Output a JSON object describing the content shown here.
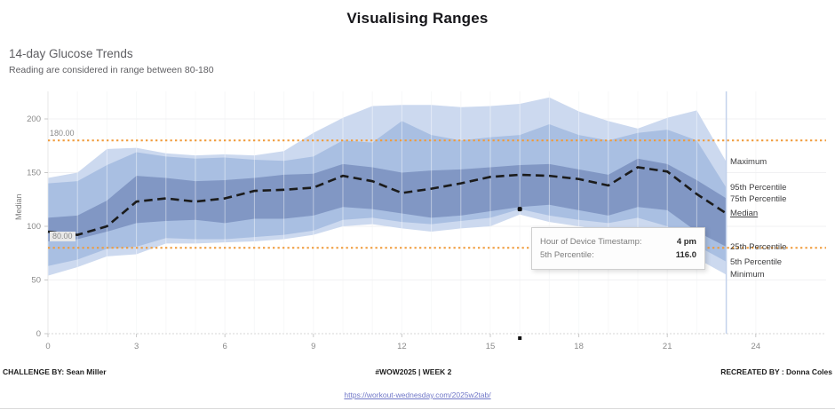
{
  "page": {
    "title": "Visualising Ranges"
  },
  "chart_header": {
    "title": "14-day Glucose Trends",
    "subtitle": "Reading are considered in range between 80-180"
  },
  "chart_data": {
    "type": "area",
    "title": "14-day Glucose Trends",
    "ylabel": "Median",
    "x": [
      0,
      1,
      2,
      3,
      4,
      5,
      6,
      7,
      8,
      9,
      10,
      11,
      12,
      13,
      14,
      15,
      16,
      17,
      18,
      19,
      20,
      21,
      22,
      23
    ],
    "x_ticks": [
      0,
      3,
      6,
      9,
      12,
      15,
      18,
      21,
      24
    ],
    "y_ticks": [
      0,
      50,
      100,
      150,
      200
    ],
    "ylim": [
      0,
      225
    ],
    "xlim": [
      0,
      24
    ],
    "grid": "vertical-hour-lines",
    "series": [
      {
        "name": "Maximum",
        "band": "min-max",
        "values": [
          145,
          150,
          172,
          173,
          168,
          166,
          167,
          166,
          170,
          187,
          201,
          212,
          213,
          213,
          211,
          212,
          214,
          220,
          207,
          198,
          191,
          201,
          208,
          160
        ]
      },
      {
        "name": "95th Percentile",
        "band": "5-95",
        "values": [
          140,
          142,
          157,
          169,
          165,
          163,
          164,
          162,
          161,
          165,
          180,
          178,
          198,
          185,
          180,
          183,
          185,
          195,
          185,
          180,
          187,
          190,
          180,
          136
        ]
      },
      {
        "name": "75th Percentile",
        "band": "25-75",
        "values": [
          108,
          110,
          124,
          147,
          145,
          142,
          143,
          145,
          148,
          149,
          158,
          155,
          150,
          152,
          153,
          155,
          157,
          158,
          153,
          148,
          163,
          158,
          143,
          126
        ]
      },
      {
        "name": "Median",
        "band": "median-line",
        "underlined": true,
        "values": [
          95,
          92,
          100,
          123,
          126,
          123,
          126,
          133,
          134,
          136,
          147,
          142,
          131,
          135,
          140,
          146,
          148,
          147,
          144,
          138,
          155,
          151,
          130,
          112
        ]
      },
      {
        "name": "25th Percentile",
        "band": "25-75",
        "values": [
          86,
          88,
          95,
          103,
          105,
          106,
          103,
          107,
          107,
          110,
          118,
          116,
          112,
          108,
          110,
          114,
          118,
          120,
          115,
          110,
          118,
          115,
          95,
          81
        ]
      },
      {
        "name": "5th Percentile",
        "band": "5-95",
        "values": [
          63,
          69,
          79,
          81,
          89,
          88,
          88,
          90,
          92,
          96,
          106,
          108,
          104,
          102,
          105,
          108,
          116,
          110,
          106,
          103,
          108,
          100,
          82,
          67
        ]
      },
      {
        "name": "Minimum",
        "band": "min-max",
        "values": [
          54,
          62,
          72,
          74,
          84,
          84,
          85,
          86,
          88,
          92,
          100,
          102,
          98,
          95,
          98,
          100,
          111,
          104,
          100,
          96,
          99,
          92,
          70,
          55
        ]
      }
    ],
    "reference_lines": [
      {
        "value": 180,
        "label": "180.00"
      },
      {
        "value": 80,
        "label": "80.00"
      }
    ],
    "selected_point": {
      "hour": 16,
      "series": "5th Percentile",
      "value": 116.0
    },
    "colors": {
      "band_outer": "#ccd9ef",
      "band_mid": "#a9bfe2",
      "band_inner": "#8197c4",
      "median_line": "#1b1b1b",
      "reference_line": "#f09a38",
      "last_hour_line": "#c3d2ec",
      "axis_text": "#8a8a8a"
    }
  },
  "tooltip": {
    "rows": [
      {
        "label": "Hour of Device Timestamp:",
        "value": "4 pm"
      },
      {
        "label": "5th Percentile:",
        "value": "116.0"
      }
    ]
  },
  "footer": {
    "challenge_by": "CHALLENGE BY: Sean Miller",
    "center": "#WOW2025  |  WEEK 2",
    "recreated_by": "RECREATED BY : Donna Coles",
    "link": "https://workout-wednesday.com/2025w2tab/"
  }
}
